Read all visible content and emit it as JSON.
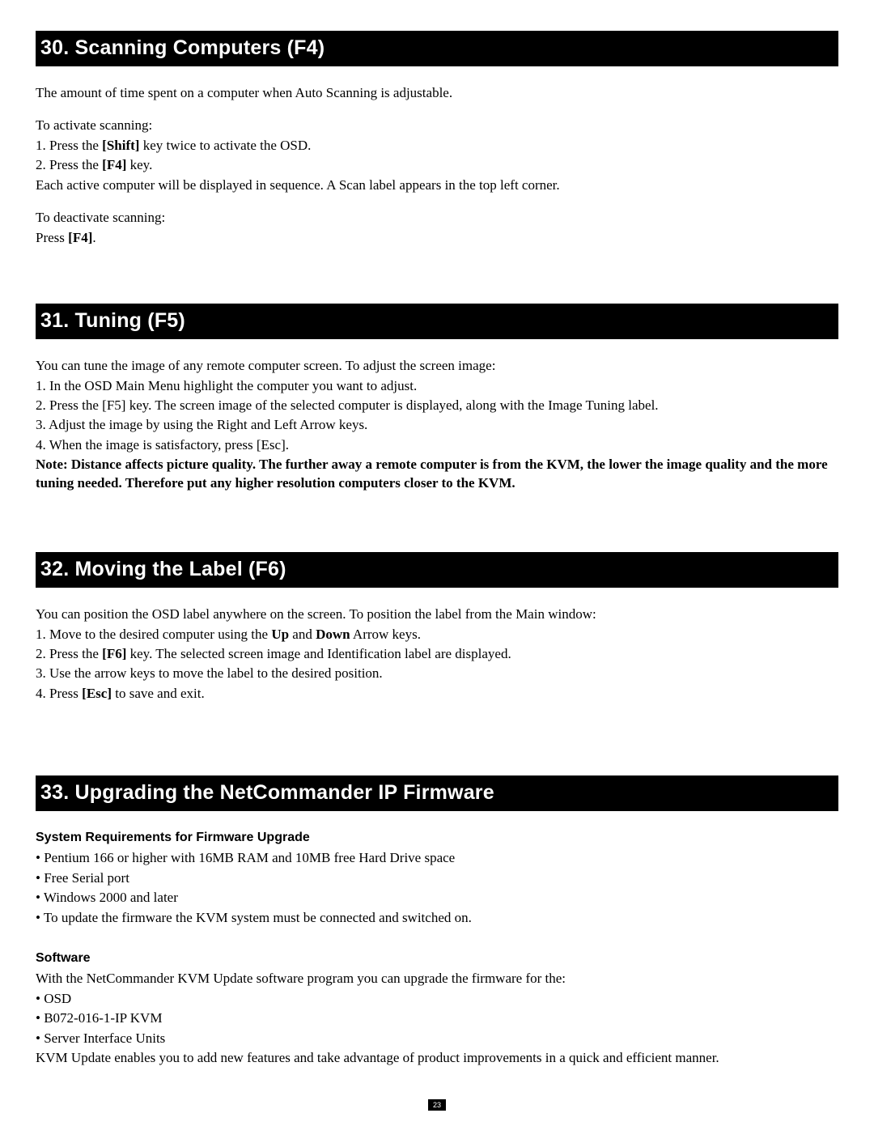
{
  "page_number": "23",
  "sections": [
    {
      "title": "30. Scanning Computers (F4)",
      "blocks": [
        {
          "html": "The amount of time spent on a computer when Auto Scanning is adjustable."
        },
        {
          "spacer": 16
        },
        {
          "html": "To activate scanning:"
        },
        {
          "html": "1. Press the <b>[Shift]</b> key twice to activate the OSD."
        },
        {
          "html": "2. Press the <b>[F4]</b> key."
        },
        {
          "html": "Each active computer will be displayed in sequence. A Scan label appears in the top left corner."
        },
        {
          "spacer": 16
        },
        {
          "html": "To deactivate scanning:"
        },
        {
          "html": "Press <b>[F4]</b>."
        }
      ],
      "gap_after": 52
    },
    {
      "title": "31. Tuning (F5)",
      "blocks": [
        {
          "html": "You can tune the image of any remote computer screen. To adjust the screen image:"
        },
        {
          "html": "1. In the OSD Main Menu highlight the computer you want to adjust."
        },
        {
          "html": "2. Press the [F5] key. The screen image of the selected computer is displayed, along with the Image Tuning label."
        },
        {
          "html": "3. Adjust the image by using the Right and Left Arrow keys."
        },
        {
          "html": "4. When the image is satisfactory, press [Esc]."
        },
        {
          "html": "<b>Note: Distance affects picture quality. The further away a remote computer is from the KVM, the lower the image quality and the more tuning needed. Therefore put any higher resolution computers closer to the KVM.</b>"
        }
      ],
      "gap_after": 56
    },
    {
      "title": "32. Moving the Label (F6)",
      "blocks": [
        {
          "html": "You can position the OSD label anywhere on the screen. To position the label from the Main window:"
        },
        {
          "html": "1. Move to the desired computer using the <b>Up</b> and <b>Down</b> Arrow keys."
        },
        {
          "html": "2. Press the <b>[F6]</b> key. The selected screen image and Identification label are displayed."
        },
        {
          "html": "3. Use the arrow keys to move the label to the desired position."
        },
        {
          "html": "4. Press <b>[Esc]</b> to save and exit."
        }
      ],
      "gap_after": 72
    },
    {
      "title": "33. Upgrading the NetCommander IP Firmware",
      "blocks": [
        {
          "subhead": "System Requirements for Firmware Upgrade"
        },
        {
          "html": "• Pentium 166 or higher with 16MB RAM and 10MB free Hard Drive space"
        },
        {
          "html": "• Free Serial port"
        },
        {
          "html": "• Windows 2000 and later"
        },
        {
          "html": "• To update the firmware the KVM system must be connected and switched on."
        },
        {
          "spacer": 14
        },
        {
          "subhead": "Software"
        },
        {
          "html": "With the NetCommander KVM Update software program you can upgrade the firmware for the:"
        },
        {
          "html": "• OSD"
        },
        {
          "html": "• B072-016-1-IP KVM"
        },
        {
          "html": "• Server Interface Units"
        },
        {
          "html": "KVM Update enables you to add new features and take advantage of product improvements in a quick and efficient manner."
        }
      ],
      "gap_after": 0
    }
  ]
}
